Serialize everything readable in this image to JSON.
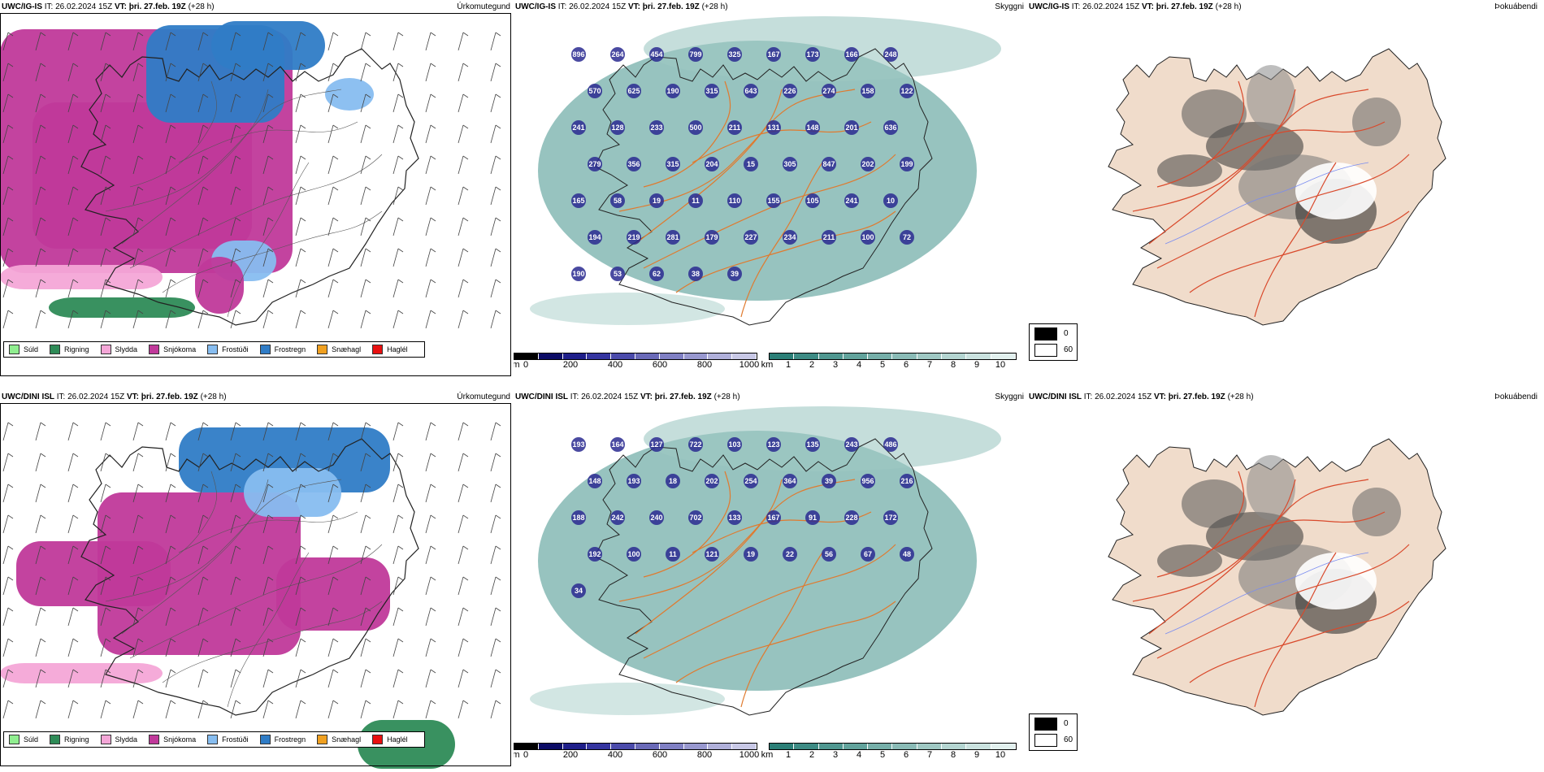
{
  "rows": [
    {
      "model": "UWC/IG-IS",
      "it": "IT: 26.02.2024 15Z",
      "vt": "VT: þri. 27.feb. 19Z",
      "lead": "(+28 h)",
      "titles": [
        "Úrkomutegund",
        "Skyggni",
        "Þokuábendi"
      ],
      "cloud_labels": [
        "896",
        "264",
        "454",
        "799",
        "325",
        "167",
        "173",
        "166",
        "248",
        "570",
        "625",
        "190",
        "315",
        "643",
        "226",
        "274",
        "158",
        "122",
        "241",
        "128",
        "233",
        "500",
        "211",
        "131",
        "148",
        "201",
        "636",
        "279",
        "356",
        "315",
        "204",
        "15",
        "305",
        "847",
        "202",
        "199",
        "165",
        "58",
        "19",
        "11",
        "110",
        "155",
        "105",
        "241",
        "10",
        "194",
        "219",
        "281",
        "179",
        "227",
        "234",
        "211",
        "100",
        "72",
        "190",
        "53",
        "62",
        "38",
        "39"
      ]
    },
    {
      "model": "UWC/DINI ISL",
      "it": "IT: 26.02.2024 15Z",
      "vt": "VT: þri. 27.feb. 19Z",
      "lead": "(+28 h)",
      "titles": [
        "Úrkomutegund",
        "Skyggni",
        "Þokuábendi"
      ],
      "cloud_labels": [
        "193",
        "164",
        "127",
        "722",
        "103",
        "123",
        "135",
        "243",
        "486",
        "148",
        "193",
        "18",
        "202",
        "254",
        "364",
        "39",
        "956",
        "216",
        "188",
        "242",
        "240",
        "702",
        "133",
        "167",
        "91",
        "228",
        "172",
        "192",
        "100",
        "11",
        "121",
        "19",
        "22",
        "56",
        "67",
        "48",
        "34"
      ]
    }
  ],
  "precip_legend": [
    {
      "label": "Súld",
      "color": "#90ee90"
    },
    {
      "label": "Rigning",
      "color": "#2e8b57"
    },
    {
      "label": "Slydda",
      "color": "#f4a6d7"
    },
    {
      "label": "Snjókoma",
      "color": "#c0399a"
    },
    {
      "label": "Frostúði",
      "color": "#87bdf0"
    },
    {
      "label": "Frostregn",
      "color": "#2f7cc6"
    },
    {
      "label": "Snæhagl",
      "color": "#f0a020"
    },
    {
      "label": "Haglél",
      "color": "#e81010"
    }
  ],
  "ceiling_bar": {
    "unit": "m",
    "ticks": [
      "0",
      "200",
      "400",
      "600",
      "800",
      "1000"
    ],
    "colors": [
      "#000000",
      "#0c0c66",
      "#1f1f8a",
      "#3535a0",
      "#4b4bab",
      "#6a6ab8",
      "#8080c4",
      "#9898cf",
      "#b0b0da",
      "#c8c8e6"
    ]
  },
  "vis_bar": {
    "unit": "km",
    "ticks": [
      "1",
      "2",
      "3",
      "4",
      "5",
      "6",
      "7",
      "8",
      "9",
      "10"
    ],
    "colors": [
      "#2b7f77",
      "#3d8b84",
      "#4f9790",
      "#62a39c",
      "#76afa9",
      "#8abbb6",
      "#9fc8c3",
      "#b4d5d1",
      "#cae2df",
      "#e2f0ee"
    ]
  },
  "fog_legend": [
    {
      "label": "0",
      "color": "#000000"
    },
    {
      "label": "60",
      "color": "#ffffff"
    }
  ]
}
